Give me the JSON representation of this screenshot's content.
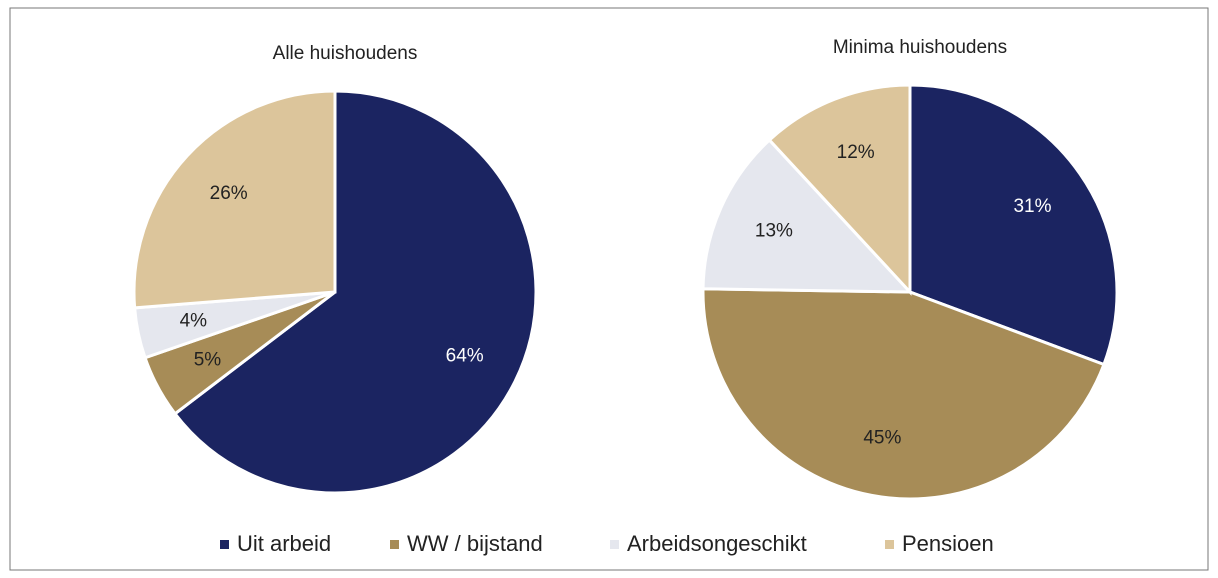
{
  "chart_data": [
    {
      "type": "pie",
      "title": "Alle huishoudens",
      "categories": [
        "Uit arbeid",
        "WW / bijstand",
        "Arbeidsongeschikt",
        "Pensioen"
      ],
      "values": [
        64,
        5,
        4,
        26
      ],
      "value_labels": [
        "64%",
        "5%",
        "4%",
        "26%"
      ],
      "colors": [
        "#1b2461",
        "#a78c57",
        "#e5e7ee",
        "#dcc59b"
      ],
      "label_colors": [
        "#ffffff",
        "#222222",
        "#222222",
        "#222222"
      ]
    },
    {
      "type": "pie",
      "title": "Minima huishoudens",
      "categories": [
        "Uit arbeid",
        "WW / bijstand",
        "Arbeidsongeschikt",
        "Pensioen"
      ],
      "values": [
        31,
        45,
        13,
        12
      ],
      "value_labels": [
        "31%",
        "45%",
        "13%",
        "12%"
      ],
      "colors": [
        "#1b2461",
        "#a78c57",
        "#e5e7ee",
        "#dcc59b"
      ],
      "label_colors": [
        "#ffffff",
        "#222222",
        "#222222",
        "#222222"
      ]
    }
  ]
}
